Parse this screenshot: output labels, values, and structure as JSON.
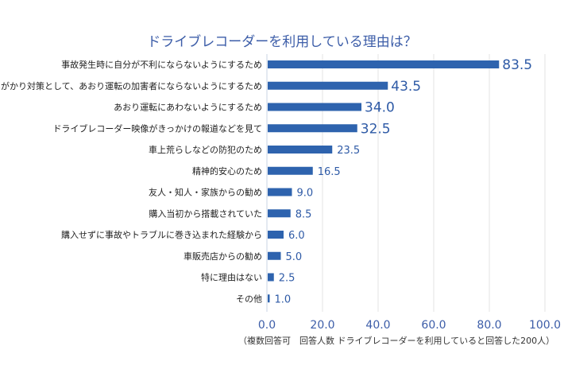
{
  "chart_data": {
    "type": "bar",
    "orientation": "horizontal",
    "title": "ドライブレコーダーを利用している理由は？",
    "categories": [
      "事故発生時に自分が不利にならないようにするため",
      "言いがかり対策として、あおり運転の加害者にならないようにするため",
      "あおり運転にあわないようにするため",
      "ドライブレコーダー映像がきっかけの報道などを見て",
      "車上荒らしなどの防犯のため",
      "精神的安心のため",
      "友人・知人・家族からの勧め",
      "購入当初から搭載されていた",
      "購入せずに事故やトラブルに巻き込まれた経験から",
      "車販売店からの勧め",
      "特に理由はない",
      "その他"
    ],
    "values": [
      83.5,
      43.5,
      34.0,
      32.5,
      23.5,
      16.5,
      9.0,
      8.5,
      6.0,
      5.0,
      2.5,
      1.0
    ],
    "data_labels": [
      "83.5",
      "43.5",
      "34.0",
      "32.5",
      "23.5",
      "16.5",
      "9.0",
      "8.5",
      "6.0",
      "5.0",
      "2.5",
      "1.0"
    ],
    "xlim": [
      0,
      100
    ],
    "xticks": [
      "0.0",
      "20.0",
      "40.0",
      "60.0",
      "80.0",
      "100.0"
    ],
    "grid": "vertical",
    "bar_color": "#2e63ae",
    "note": "（複数回答可　回答人数 ドライブレコーダーを利用していると回答した200人）"
  }
}
